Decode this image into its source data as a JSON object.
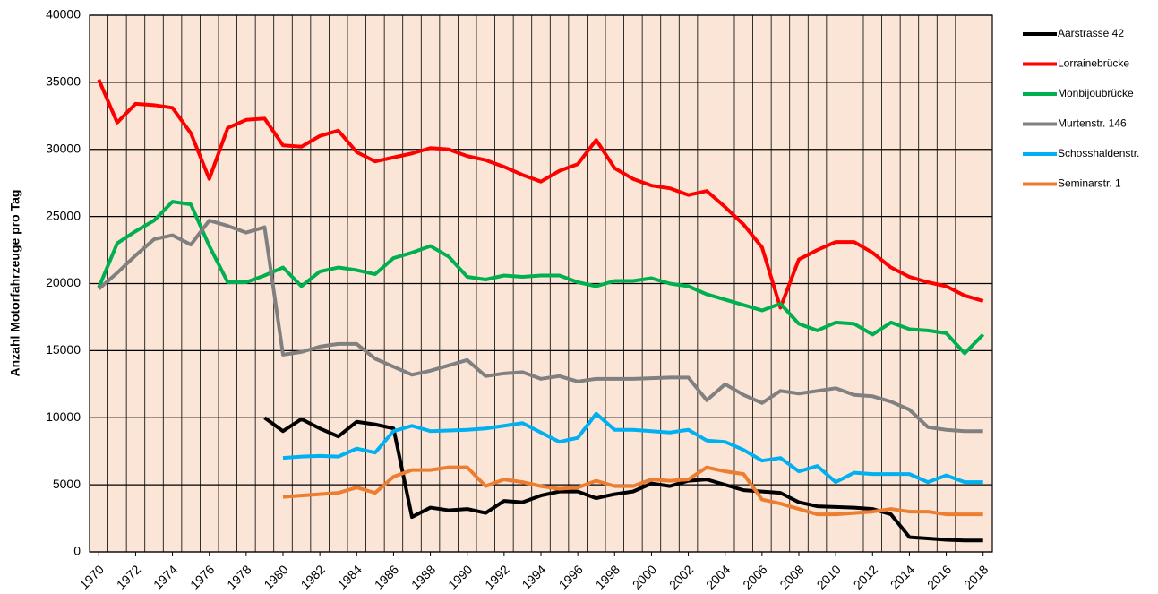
{
  "chart_data": {
    "type": "line",
    "y_label": "Anzahl Motorfahrzeuge pro Tag",
    "x": [
      1970,
      1971,
      1972,
      1973,
      1974,
      1975,
      1976,
      1977,
      1978,
      1979,
      1980,
      1981,
      1982,
      1983,
      1984,
      1985,
      1986,
      1987,
      1988,
      1989,
      1990,
      1991,
      1992,
      1993,
      1994,
      1995,
      1996,
      1997,
      1998,
      1999,
      2000,
      2001,
      2002,
      2003,
      2004,
      2005,
      2006,
      2007,
      2008,
      2009,
      2010,
      2011,
      2012,
      2013,
      2014,
      2015,
      2016,
      2017,
      2018
    ],
    "xlim": [
      1969.5,
      2018.5
    ],
    "xticks": [
      1970,
      1972,
      1974,
      1976,
      1978,
      1980,
      1982,
      1984,
      1986,
      1988,
      1990,
      1992,
      1994,
      1996,
      1998,
      2000,
      2002,
      2004,
      2006,
      2008,
      2010,
      2012,
      2014,
      2016,
      2018
    ],
    "ylim": [
      0,
      40000
    ],
    "yticks": [
      0,
      5000,
      10000,
      15000,
      20000,
      25000,
      30000,
      35000,
      40000
    ],
    "grid": true,
    "legend": "right",
    "background": "#fbe5d6",
    "series": [
      {
        "name": "Aarstrasse 42",
        "color": "#000000",
        "values": [
          null,
          null,
          null,
          null,
          null,
          null,
          null,
          null,
          null,
          10000,
          9000,
          9900,
          9200,
          8600,
          9700,
          9500,
          9200,
          2600,
          3300,
          3100,
          3200,
          2900,
          3800,
          3700,
          4200,
          4500,
          4500,
          4000,
          4300,
          4500,
          5100,
          4900,
          5300,
          5400,
          5000,
          4600,
          4500,
          4400,
          3700,
          3400,
          3350,
          3300,
          3200,
          2800,
          1100,
          1000,
          900,
          850,
          850
        ]
      },
      {
        "name": "Lorrainebrücke",
        "color": "#ff0000",
        "values": [
          35200,
          32000,
          33400,
          33300,
          33100,
          31200,
          27800,
          31600,
          32200,
          32300,
          30300,
          30200,
          31000,
          31400,
          29800,
          29100,
          29400,
          29700,
          30100,
          30000,
          29500,
          29200,
          28700,
          28100,
          27600,
          28400,
          28900,
          30700,
          28600,
          27800,
          27300,
          27100,
          26600,
          26900,
          25700,
          24400,
          22700,
          18200,
          21800,
          22500,
          23100,
          23100,
          22300,
          21200,
          20500,
          20100,
          19800,
          19100,
          18700
        ]
      },
      {
        "name": "Monbijoubrücke",
        "color": "#00b050",
        "values": [
          19700,
          23000,
          23900,
          24700,
          26100,
          25900,
          22800,
          20100,
          20100,
          20600,
          21200,
          19800,
          20900,
          21200,
          21000,
          20700,
          21900,
          22300,
          22800,
          22000,
          20500,
          20300,
          20600,
          20500,
          20600,
          20600,
          20100,
          19800,
          20200,
          20200,
          20400,
          20000,
          19800,
          19200,
          18800,
          18400,
          18000,
          18500,
          17000,
          16500,
          17100,
          17000,
          16200,
          17100,
          16600,
          16500,
          16300,
          14800,
          16200
        ]
      },
      {
        "name": "Murtenstr. 146",
        "color": "#808080",
        "values": [
          19600,
          20800,
          22100,
          23300,
          23600,
          22900,
          24700,
          24300,
          23800,
          24200,
          14700,
          14900,
          15300,
          15500,
          15500,
          14400,
          13800,
          13200,
          13500,
          13900,
          14300,
          13100,
          13300,
          13400,
          12900,
          13100,
          12700,
          12900,
          12900,
          12900,
          12950,
          13000,
          13000,
          11300,
          12500,
          11700,
          11100,
          12000,
          11800,
          12000,
          12200,
          11700,
          11600,
          11200,
          10600,
          9300,
          9100,
          9000,
          9000
        ]
      },
      {
        "name": "Schosshaldenstr.",
        "color": "#00b0f0",
        "values": [
          null,
          null,
          null,
          null,
          null,
          null,
          null,
          null,
          null,
          null,
          7000,
          7100,
          7150,
          7100,
          7700,
          7400,
          9000,
          9400,
          9000,
          9050,
          9100,
          9200,
          9400,
          9600,
          8900,
          8200,
          8500,
          10300,
          9100,
          9100,
          9000,
          8900,
          9100,
          8300,
          8200,
          7600,
          6800,
          7000,
          6000,
          6400,
          5200,
          5900,
          5800,
          5800,
          5800,
          5200,
          5700,
          5200,
          5200
        ]
      },
      {
        "name": "Seminarstr. 1",
        "color": "#ed7d31",
        "values": [
          null,
          null,
          null,
          null,
          null,
          null,
          null,
          null,
          null,
          null,
          4100,
          4200,
          4300,
          4400,
          4800,
          4400,
          5600,
          6100,
          6100,
          6300,
          6300,
          4900,
          5400,
          5200,
          4900,
          4700,
          4800,
          5300,
          4900,
          4900,
          5400,
          5300,
          5400,
          6300,
          6000,
          5800,
          3900,
          3600,
          3200,
          2800,
          2800,
          2900,
          3000,
          3200,
          3000,
          3000,
          2800,
          2800,
          2800
        ]
      }
    ]
  }
}
